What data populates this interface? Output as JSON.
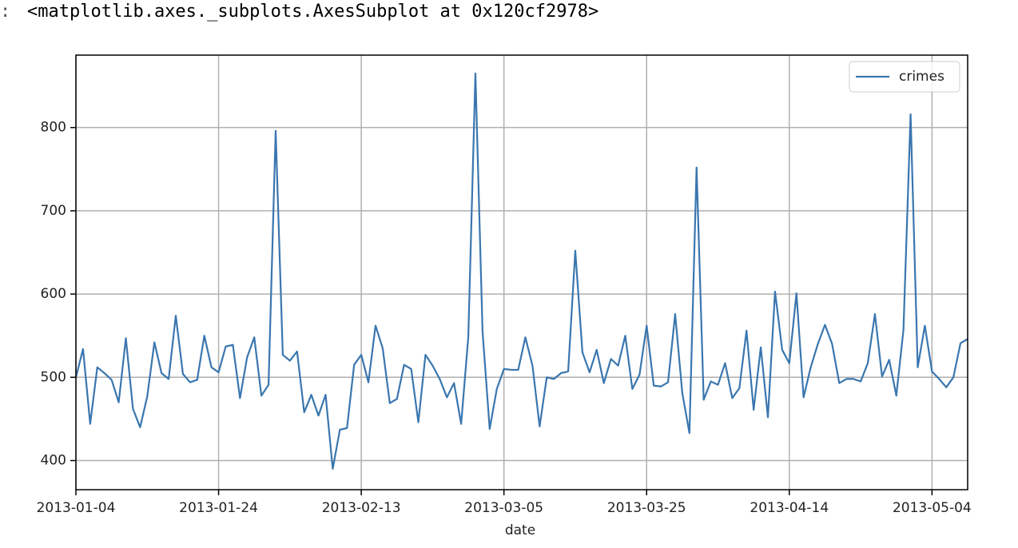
{
  "prompt": ":",
  "output_text": "<matplotlib.axes._subplots.AxesSubplot at 0x120cf2978>",
  "chart_data": {
    "type": "line",
    "xlabel": "date",
    "grid": true,
    "legend": "upper right",
    "x": [
      "2013-01-04",
      "2013-01-05",
      "2013-01-06",
      "2013-01-07",
      "2013-01-08",
      "2013-01-09",
      "2013-01-10",
      "2013-01-11",
      "2013-01-12",
      "2013-01-13",
      "2013-01-14",
      "2013-01-15",
      "2013-01-16",
      "2013-01-17",
      "2013-01-18",
      "2013-01-19",
      "2013-01-20",
      "2013-01-21",
      "2013-01-22",
      "2013-01-23",
      "2013-01-24",
      "2013-01-25",
      "2013-01-26",
      "2013-01-27",
      "2013-01-28",
      "2013-01-29",
      "2013-01-30",
      "2013-01-31",
      "2013-02-01",
      "2013-02-02",
      "2013-02-03",
      "2013-02-04",
      "2013-02-05",
      "2013-02-06",
      "2013-02-07",
      "2013-02-08",
      "2013-02-09",
      "2013-02-10",
      "2013-02-11",
      "2013-02-12",
      "2013-02-13",
      "2013-02-14",
      "2013-02-15",
      "2013-02-16",
      "2013-02-17",
      "2013-02-18",
      "2013-02-19",
      "2013-02-20",
      "2013-02-21",
      "2013-02-22",
      "2013-02-23",
      "2013-02-24",
      "2013-02-25",
      "2013-02-26",
      "2013-02-27",
      "2013-02-28",
      "2013-03-01",
      "2013-03-02",
      "2013-03-03",
      "2013-03-04",
      "2013-03-05",
      "2013-03-06",
      "2013-03-07",
      "2013-03-08",
      "2013-03-09",
      "2013-03-10",
      "2013-03-11",
      "2013-03-12",
      "2013-03-13",
      "2013-03-14",
      "2013-03-15",
      "2013-03-16",
      "2013-03-17",
      "2013-03-18",
      "2013-03-19",
      "2013-03-20",
      "2013-03-21",
      "2013-03-22",
      "2013-03-23",
      "2013-03-24",
      "2013-03-25",
      "2013-03-26",
      "2013-03-27",
      "2013-03-28",
      "2013-03-29",
      "2013-03-30",
      "2013-03-31",
      "2013-04-01",
      "2013-04-02",
      "2013-04-03",
      "2013-04-04",
      "2013-04-05",
      "2013-04-06",
      "2013-04-07",
      "2013-04-08",
      "2013-04-09",
      "2013-04-10",
      "2013-04-11",
      "2013-04-12",
      "2013-04-13",
      "2013-04-14",
      "2013-04-15",
      "2013-04-16",
      "2013-04-17",
      "2013-04-18",
      "2013-04-19",
      "2013-04-20",
      "2013-04-21",
      "2013-04-22",
      "2013-04-23",
      "2013-04-24",
      "2013-04-25",
      "2013-04-26",
      "2013-04-27",
      "2013-04-28",
      "2013-04-29",
      "2013-04-30",
      "2013-05-01",
      "2013-05-02",
      "2013-05-03",
      "2013-05-04",
      "2013-05-05",
      "2013-05-06",
      "2013-05-07",
      "2013-05-08",
      "2013-05-09"
    ],
    "series": [
      {
        "name": "crimes",
        "color": "#3a76af",
        "values": [
          500,
          534,
          444,
          512,
          505,
          497,
          470,
          547,
          462,
          440,
          477,
          542,
          505,
          498,
          574,
          504,
          494,
          497,
          550,
          512,
          506,
          537,
          539,
          475,
          524,
          548,
          478,
          491,
          796,
          527,
          520,
          531,
          458,
          479,
          454,
          479,
          390,
          437,
          439,
          515,
          527,
          494,
          562,
          535,
          469,
          474,
          515,
          510,
          446,
          527,
          514,
          498,
          476,
          493,
          444,
          548,
          865,
          555,
          438,
          486,
          510,
          509,
          509,
          548,
          514,
          441,
          500,
          498,
          505,
          507,
          652,
          530,
          506,
          533,
          493,
          522,
          514,
          550,
          486,
          503,
          562,
          490,
          489,
          494,
          576,
          481,
          433,
          752,
          473,
          495,
          491,
          517,
          475,
          487,
          556,
          461,
          536,
          452,
          603,
          533,
          517,
          601,
          476,
          512,
          540,
          563,
          540,
          493,
          498,
          498,
          495,
          517,
          576,
          501,
          521,
          478,
          557,
          816,
          512,
          562,
          507,
          498,
          488,
          500,
          541,
          546
        ]
      }
    ],
    "xlim": [
      "2013-01-04",
      "2013-05-09"
    ],
    "xticks": [
      "2013-01-04",
      "2013-01-24",
      "2013-02-13",
      "2013-03-05",
      "2013-03-25",
      "2013-04-14",
      "2013-05-04"
    ],
    "ylim": [
      365,
      887
    ],
    "yticks": [
      400,
      500,
      600,
      700,
      800
    ]
  }
}
